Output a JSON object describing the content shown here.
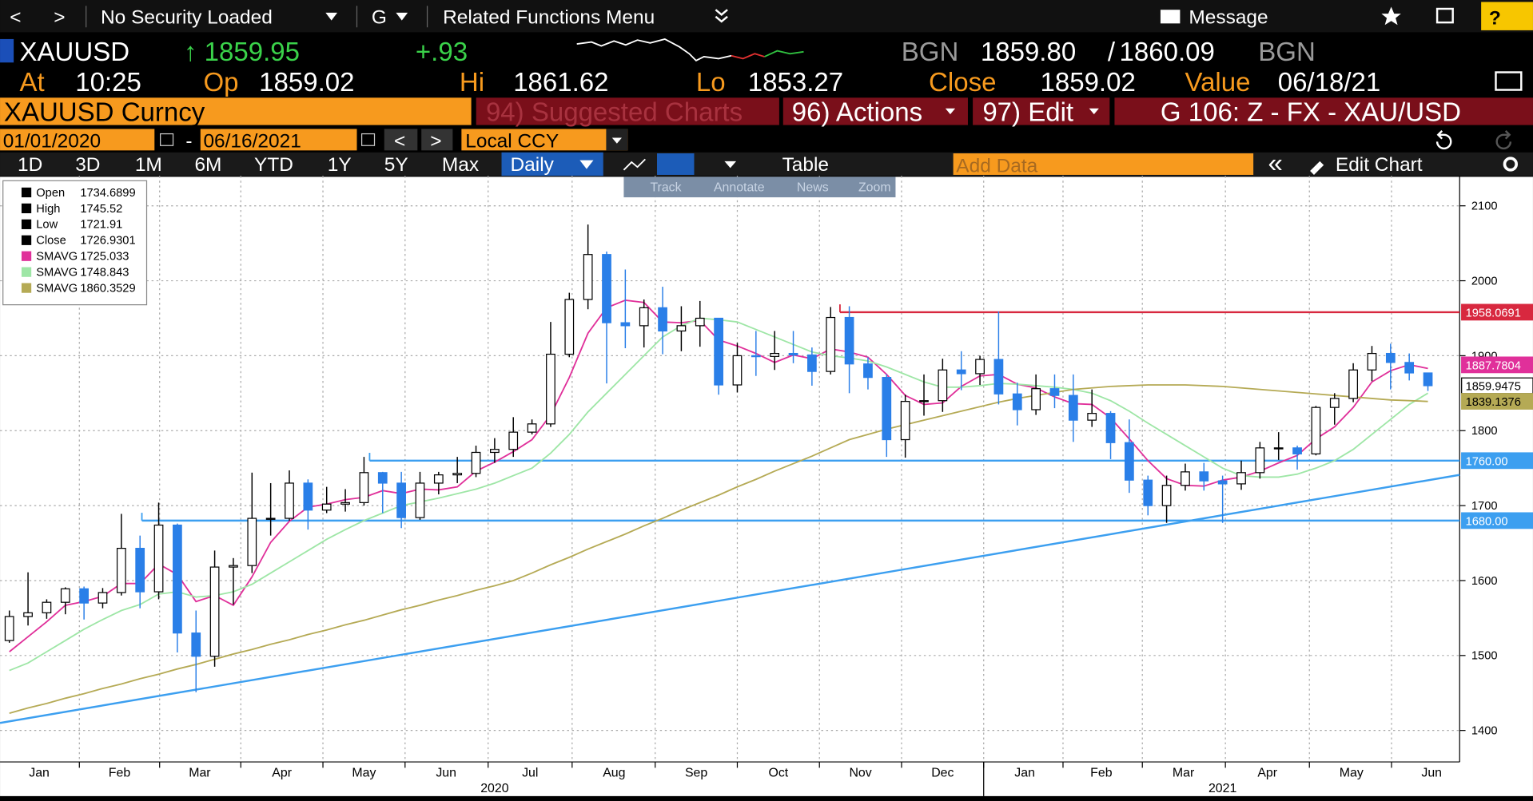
{
  "toolbar": {
    "back": "<",
    "forward": ">",
    "security": "No Security Loaded",
    "menu_g": "G",
    "related": "Related Functions Menu",
    "message": "Message",
    "help": "?"
  },
  "quote": {
    "ticker": "XAUUSD",
    "last": "↑ 1859.95",
    "change": "+.93",
    "source1": "BGN",
    "bid": "1859.80",
    "slash": "/",
    "ask": "1860.09",
    "source2": "BGN"
  },
  "details": [
    {
      "label": "At",
      "value": "10:25"
    },
    {
      "label": "Op",
      "value": "1859.02"
    },
    {
      "label": "Hi",
      "value": "1861.62"
    },
    {
      "label": "Lo",
      "value": "1853.27"
    },
    {
      "label": "Close",
      "value": "1859.02"
    },
    {
      "label": "Value",
      "value": "06/18/21"
    }
  ],
  "security_bar": {
    "name": "XAUUSD Curncy",
    "suggested": "94) Suggested Charts",
    "actions": "96) Actions",
    "edit": "97) Edit",
    "page": "G 106: Z - FX - XAU/USD"
  },
  "range": {
    "start": "01/01/2020",
    "sep": "-",
    "end": "06/16/2021",
    "prev": "<",
    "next": ">",
    "currency": "Local CCY"
  },
  "periods": [
    "1D",
    "3D",
    "1M",
    "6M",
    "YTD",
    "1Y",
    "5Y",
    "Max"
  ],
  "frequency": "Daily",
  "table": "Table",
  "add_data": "Add Data",
  "collapse": "«",
  "edit_chart": "Edit Chart",
  "chart_tools": [
    "Track",
    "Annotate",
    "News",
    "Zoom"
  ],
  "chart_data": {
    "type": "candlestick",
    "up_color": "#ffffff",
    "down_color": "#2a7fe8",
    "grid": true,
    "open": [
      1520,
      1552,
      1557,
      1571,
      1589,
      1570,
      1584,
      1643,
      1585,
      1674,
      1530,
      1499,
      1618,
      1620,
      1683,
      1683,
      1730,
      1694,
      1702,
      1704,
      1744,
      1730,
      1684,
      1730,
      1741,
      1743,
      1771,
      1775,
      1798,
      1809,
      1902,
      1975,
      2035,
      1944,
      1940,
      1964,
      1933,
      1940,
      1950,
      1861,
      1900,
      1899,
      1903,
      1901,
      1879,
      1951,
      1889,
      1871,
      1788,
      1839,
      1840,
      1881,
      1876,
      1895,
      1849,
      1828,
      1856,
      1847,
      1814,
      1823,
      1784,
      1734,
      1700,
      1727,
      1745,
      1733,
      1729,
      1744,
      1777,
      1777,
      1769,
      1831,
      1843,
      1881,
      1903,
      1891,
      1877
    ],
    "high": [
      1560,
      1611,
      1575,
      1591,
      1592,
      1590,
      1689,
      1660,
      1704,
      1676,
      1560,
      1640,
      1630,
      1744,
      1730,
      1747,
      1735,
      1725,
      1722,
      1765,
      1745,
      1745,
      1745,
      1745,
      1765,
      1780,
      1790,
      1818,
      1815,
      1945,
      1984,
      2075,
      2039,
      2015,
      1975,
      1992,
      1966,
      1973,
      1950,
      1917,
      1933,
      1933,
      1933,
      1911,
      1965,
      1966,
      1898,
      1875,
      1848,
      1875,
      1896,
      1906,
      1900,
      1959,
      1864,
      1875,
      1875,
      1875,
      1855,
      1826,
      1815,
      1740,
      1740,
      1756,
      1757,
      1740,
      1760,
      1785,
      1798,
      1780,
      1833,
      1850,
      1890,
      1913,
      1916,
      1903,
      1877
    ],
    "low": [
      1517,
      1540,
      1549,
      1555,
      1548,
      1563,
      1580,
      1563,
      1575,
      1504,
      1451,
      1485,
      1568,
      1610,
      1660,
      1680,
      1668,
      1690,
      1692,
      1700,
      1690,
      1670,
      1681,
      1715,
      1730,
      1738,
      1757,
      1765,
      1795,
      1805,
      1898,
      1962,
      1863,
      1910,
      1911,
      1902,
      1906,
      1912,
      1848,
      1851,
      1873,
      1881,
      1890,
      1860,
      1875,
      1850,
      1855,
      1765,
      1764,
      1820,
      1825,
      1854,
      1861,
      1835,
      1807,
      1821,
      1830,
      1785,
      1805,
      1762,
      1717,
      1687,
      1677,
      1720,
      1720,
      1677,
      1721,
      1736,
      1761,
      1748,
      1767,
      1808,
      1838,
      1866,
      1855,
      1867,
      1853
    ],
    "close": [
      1552,
      1557,
      1571,
      1589,
      1570,
      1584,
      1643,
      1585,
      1674,
      1530,
      1499,
      1618,
      1620,
      1683,
      1683,
      1730,
      1694,
      1702,
      1704,
      1744,
      1730,
      1684,
      1730,
      1741,
      1743,
      1771,
      1775,
      1798,
      1809,
      1902,
      1975,
      2035,
      1944,
      1940,
      1964,
      1933,
      1940,
      1950,
      1861,
      1900,
      1899,
      1903,
      1901,
      1879,
      1951,
      1889,
      1871,
      1788,
      1839,
      1840,
      1881,
      1876,
      1895,
      1849,
      1828,
      1856,
      1847,
      1814,
      1823,
      1784,
      1734,
      1700,
      1727,
      1745,
      1733,
      1729,
      1744,
      1777,
      1777,
      1769,
      1831,
      1843,
      1881,
      1903,
      1891,
      1877,
      1860
    ],
    "series": [
      {
        "color": "#e0309a",
        "values": [
          1505,
          1525,
          1545,
          1567,
          1572,
          1579,
          1596,
          1596,
          1622,
          1608,
          1572,
          1580,
          1567,
          1605,
          1651,
          1679,
          1698,
          1702,
          1708,
          1711,
          1720,
          1716,
          1722,
          1721,
          1725,
          1746,
          1758,
          1772,
          1788,
          1821,
          1871,
          1930,
          1964,
          1974,
          1971,
          1945,
          1944,
          1947,
          1921,
          1913,
          1903,
          1891,
          1901,
          1896,
          1909,
          1905,
          1898,
          1875,
          1847,
          1835,
          1837,
          1859,
          1873,
          1875,
          1862,
          1857,
          1845,
          1836,
          1835,
          1817,
          1789,
          1760,
          1736,
          1727,
          1726,
          1734,
          1738,
          1746,
          1757,
          1767,
          1789,
          1805,
          1831,
          1865,
          1880,
          1888,
          1883
        ]
      },
      {
        "color": "#9ee6a6",
        "values": [
          1480,
          1490,
          1505,
          1520,
          1535,
          1548,
          1560,
          1568,
          1582,
          1585,
          1578,
          1580,
          1585,
          1595,
          1610,
          1625,
          1640,
          1655,
          1668,
          1680,
          1690,
          1700,
          1705,
          1710,
          1716,
          1722,
          1730,
          1740,
          1750,
          1770,
          1795,
          1825,
          1850,
          1875,
          1900,
          1925,
          1940,
          1950,
          1948,
          1945,
          1935,
          1925,
          1915,
          1905,
          1900,
          1897,
          1893,
          1885,
          1875,
          1865,
          1858,
          1858,
          1860,
          1863,
          1862,
          1860,
          1858,
          1855,
          1850,
          1840,
          1826,
          1810,
          1795,
          1780,
          1765,
          1750,
          1740,
          1738,
          1738,
          1742,
          1750,
          1760,
          1775,
          1795,
          1815,
          1835,
          1850
        ]
      },
      {
        "color": "#b5aa55",
        "values": [
          1423,
          1430,
          1436,
          1443,
          1449,
          1456,
          1462,
          1469,
          1475,
          1482,
          1488,
          1495,
          1502,
          1508,
          1515,
          1521,
          1528,
          1534,
          1541,
          1547,
          1554,
          1561,
          1567,
          1574,
          1580,
          1587,
          1593,
          1600,
          1610,
          1621,
          1631,
          1642,
          1652,
          1662,
          1673,
          1683,
          1694,
          1704,
          1714,
          1725,
          1735,
          1746,
          1756,
          1766,
          1777,
          1788,
          1795,
          1802,
          1808,
          1814,
          1820,
          1826,
          1832,
          1838,
          1843,
          1847,
          1851,
          1855,
          1857,
          1859,
          1860,
          1861,
          1861,
          1861,
          1860,
          1859,
          1857,
          1855,
          1853,
          1851,
          1849,
          1847,
          1845,
          1843,
          1841,
          1840,
          1839
        ]
      }
    ],
    "legend": [
      {
        "name": "Open",
        "value": 1734.6899,
        "color": "#000000"
      },
      {
        "name": "High",
        "value": 1745.52,
        "color": "#000000"
      },
      {
        "name": "Low",
        "value": 1721.91,
        "color": "#000000"
      },
      {
        "name": "Close",
        "value": 1726.9301,
        "color": "#000000"
      },
      {
        "name": "SMAVG",
        "value": 1725.033,
        "color": "#e0309a"
      },
      {
        "name": "SMAVG",
        "value": 1748.843,
        "color": "#9ee6a6"
      },
      {
        "name": "SMAVG",
        "value": 1860.3529,
        "color": "#b5aa55"
      }
    ],
    "hlines": [
      {
        "value": 1958.0691,
        "color": "#d8283f",
        "start": 45
      },
      {
        "value": 1760,
        "label": "1760.00",
        "color": "#3c9ff0",
        "start": 19.8
      },
      {
        "value": 1680,
        "label": "1680.00",
        "color": "#3c9ff0",
        "start": 7.6
      }
    ],
    "trendline": {
      "x": [
        0,
        78.2
      ],
      "y": [
        1410,
        1741
      ],
      "color": "#3c9ff0"
    },
    "last_labels": [
      {
        "value": 1887.7804,
        "color": "#e0309a",
        "text_color": "#ffffff"
      },
      {
        "value": 1859.9475,
        "color": "#ffffff",
        "text_color": "#000000"
      },
      {
        "value": 1839.1376,
        "color": "#b5aa55",
        "text_color": "#000000"
      }
    ],
    "xlim": [
      0,
      78.2
    ],
    "ylim": [
      1358,
      2140
    ],
    "yticks": [
      1400,
      1500,
      1600,
      1700,
      1800,
      1900,
      2000,
      2100
    ],
    "xticks": [
      {
        "value": 2.1,
        "label": "Jan"
      },
      {
        "value": 6.4,
        "label": "Feb"
      },
      {
        "value": 10.7,
        "label": "Mar"
      },
      {
        "value": 15.1,
        "label": "Apr"
      },
      {
        "value": 19.5,
        "label": "May"
      },
      {
        "value": 23.9,
        "label": "Jun"
      },
      {
        "value": 28.4,
        "label": "Jul"
      },
      {
        "value": 32.9,
        "label": "Aug"
      },
      {
        "value": 37.3,
        "label": "Sep"
      },
      {
        "value": 41.7,
        "label": "Oct"
      },
      {
        "value": 46.1,
        "label": "Nov"
      },
      {
        "value": 50.5,
        "label": "Dec"
      },
      {
        "value": 54.9,
        "label": "Jan"
      },
      {
        "value": 59.0,
        "label": "Feb"
      },
      {
        "value": 63.4,
        "label": "Mar"
      },
      {
        "value": 67.9,
        "label": "Apr"
      },
      {
        "value": 72.4,
        "label": "May"
      },
      {
        "value": 76.7,
        "label": "Jun"
      }
    ],
    "years": [
      {
        "value": 26.5,
        "label": "2020"
      },
      {
        "value": 65.5,
        "label": "2021"
      }
    ]
  }
}
